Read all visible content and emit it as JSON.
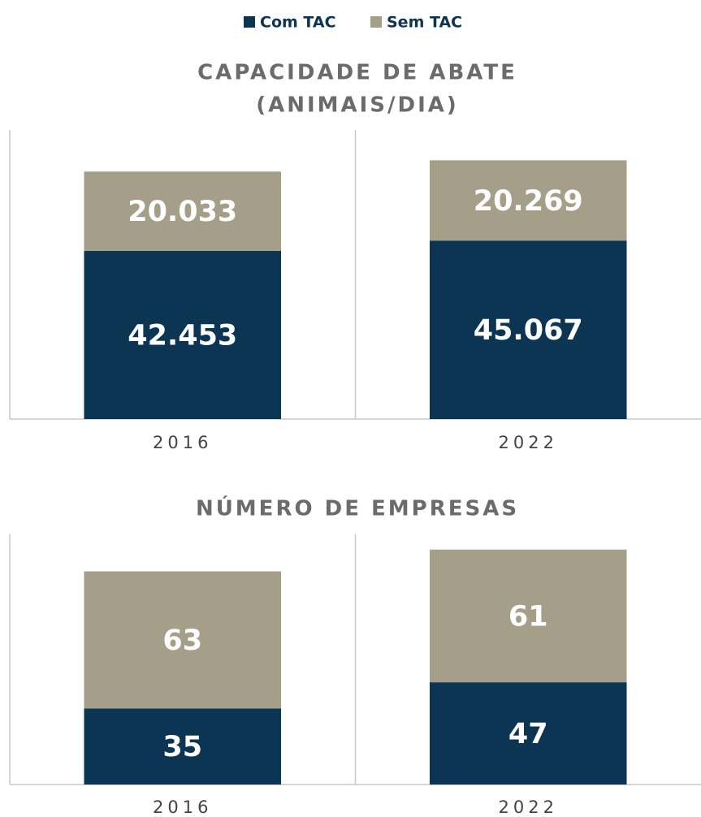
{
  "chart_data": [
    {
      "type": "stacked_bar",
      "title": [
        "CAPACIDADE DE ABATE",
        "(ANIMAIS/DIA)"
      ],
      "categories": [
        "2016",
        "2022"
      ],
      "series": [
        {
          "name": "Com TAC",
          "color": "#0b3552",
          "values": [
            42453,
            45067
          ],
          "value_labels": [
            "42.453",
            "45.067"
          ]
        },
        {
          "name": "Sem TAC",
          "color": "#a59e88",
          "values": [
            20033,
            20269
          ],
          "value_labels": [
            "20.033",
            "20.269"
          ]
        }
      ],
      "ylim": [
        0,
        73000
      ]
    },
    {
      "type": "stacked_bar",
      "title": [
        "NÚMERO DE EMPRESAS"
      ],
      "categories": [
        "2016",
        "2022"
      ],
      "series": [
        {
          "color": "#0b3552",
          "values": [
            35,
            47
          ]
        },
        {
          "color": "#a59e88",
          "values": [
            63,
            61
          ]
        }
      ],
      "ylim": [
        0,
        115
      ]
    }
  ]
}
